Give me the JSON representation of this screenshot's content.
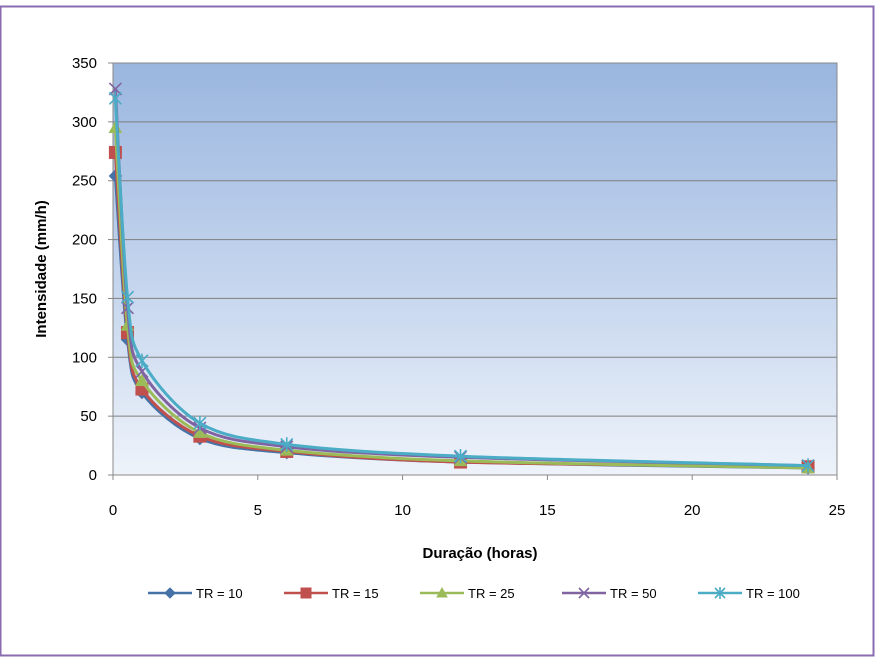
{
  "chart_data": {
    "type": "line",
    "title": "",
    "xlabel": "Duração (horas)",
    "ylabel": "Intensidade (mm/h)",
    "xlim": [
      0,
      25
    ],
    "ylim": [
      0,
      350
    ],
    "xticks": [
      "0",
      "5",
      "10",
      "15",
      "20",
      "25"
    ],
    "yticks": [
      "0",
      "50",
      "100",
      "150",
      "200",
      "250",
      "300",
      "350"
    ],
    "grid": true,
    "legend_position": "bottom",
    "x": [
      0.083,
      0.5,
      1,
      3,
      6,
      12,
      24
    ],
    "series": [
      {
        "name": "TR = 10",
        "marker": "diamond",
        "color": "#4572A7",
        "values": [
          254,
          115,
          70,
          31,
          19,
          11,
          6
        ]
      },
      {
        "name": "TR = 15",
        "marker": "square",
        "color": "#C0504D",
        "values": [
          274,
          121,
          73,
          33,
          20,
          11,
          7
        ]
      },
      {
        "name": "TR = 25",
        "marker": "triangle",
        "color": "#9BBB59",
        "values": [
          295,
          127,
          80,
          36,
          21,
          12,
          6
        ]
      },
      {
        "name": "TR = 50",
        "marker": "x",
        "color": "#8064A2",
        "values": [
          328,
          142,
          88,
          40,
          24,
          15,
          8
        ]
      },
      {
        "name": "TR = 100",
        "marker": "star",
        "color": "#4BACC6",
        "values": [
          320,
          151,
          97,
          44,
          26,
          16,
          8
        ]
      }
    ]
  }
}
